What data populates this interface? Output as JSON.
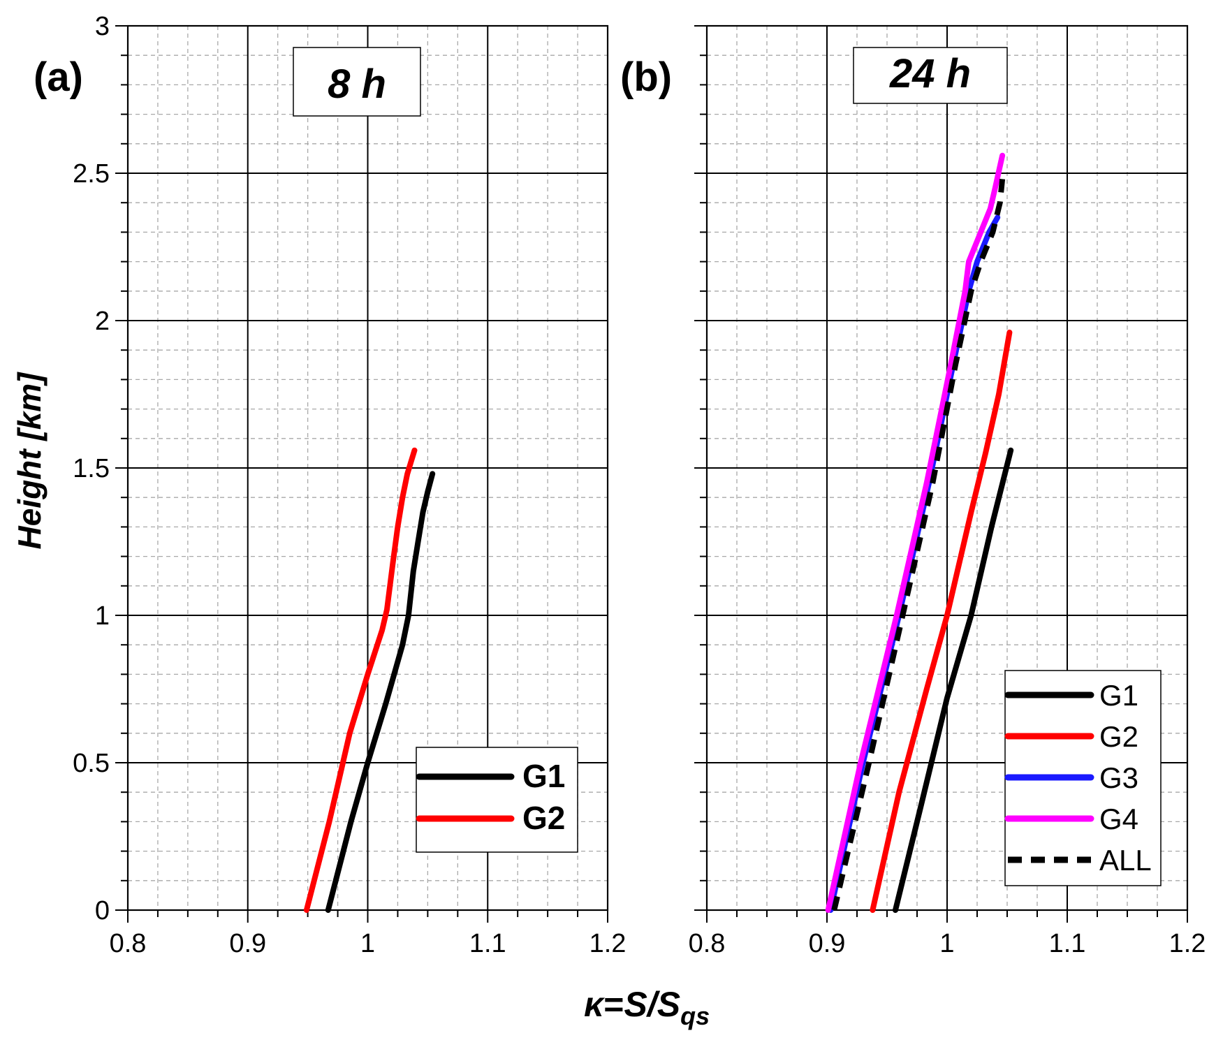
{
  "figure": {
    "ylabel": "Height [km]",
    "xlabel": {
      "kappa": "κ",
      "eq": "=",
      "s": "S/S",
      "sub": "qs"
    }
  },
  "colors": {
    "G1": "#000000",
    "G2": "#ff0000",
    "G3": "#1a1aff",
    "G4": "#ff00ff",
    "ALL": "#000000"
  },
  "chart_data": [
    {
      "type": "line",
      "panel_label": "(a)",
      "time_label": "8 h",
      "xlim": [
        0.8,
        1.2
      ],
      "ylim": [
        0,
        3
      ],
      "xticks": [
        "0.8",
        "0.9",
        "1",
        "1.1",
        "1.2"
      ],
      "yticks": [
        "0",
        "0.5",
        "1",
        "1.5",
        "2",
        "2.5",
        "3"
      ],
      "grid": true,
      "legend_position": "lower-right",
      "legend_style": "bold",
      "series": [
        {
          "name": "G1",
          "dashed": false,
          "x": [
            0.967,
            0.986,
            1.0,
            1.015,
            1.029,
            1.034,
            1.038,
            1.042,
            1.046,
            1.05,
            1.054
          ],
          "y": [
            0.0,
            0.3,
            0.5,
            0.7,
            0.9,
            1.0,
            1.15,
            1.25,
            1.35,
            1.42,
            1.48
          ]
        },
        {
          "name": "G2",
          "dashed": false,
          "x": [
            0.949,
            0.968,
            0.985,
            1.0,
            1.012,
            1.016,
            1.021,
            1.025,
            1.029,
            1.033,
            1.039
          ],
          "y": [
            0.0,
            0.3,
            0.6,
            0.8,
            0.95,
            1.02,
            1.18,
            1.3,
            1.4,
            1.48,
            1.56
          ]
        }
      ]
    },
    {
      "type": "line",
      "panel_label": "(b)",
      "time_label": "24 h",
      "xlim": [
        0.8,
        1.2
      ],
      "ylim": [
        0,
        3
      ],
      "xticks": [
        "0.8",
        "0.9",
        "1",
        "1.1",
        "1.2"
      ],
      "yticks": [
        "0",
        "0.5",
        "1",
        "1.5",
        "2",
        "2.5",
        "3"
      ],
      "grid": true,
      "legend_position": "lower-right",
      "legend_style": "normal",
      "series": [
        {
          "name": "G1",
          "dashed": false,
          "x": [
            0.957,
            0.978,
            1.0,
            1.02,
            1.037,
            1.053
          ],
          "y": [
            0.0,
            0.35,
            0.72,
            1.0,
            1.3,
            1.56
          ]
        },
        {
          "name": "G2",
          "dashed": false,
          "x": [
            0.938,
            0.96,
            0.983,
            1.0,
            1.02,
            1.032,
            1.043,
            1.052
          ],
          "y": [
            0.0,
            0.4,
            0.75,
            1.0,
            1.35,
            1.55,
            1.75,
            1.96
          ]
        },
        {
          "name": "G3",
          "dashed": false,
          "x": [
            0.903,
            0.93,
            0.96,
            0.985,
            1.005,
            1.018,
            1.025,
            1.035,
            1.042
          ],
          "y": [
            0.0,
            0.5,
            1.0,
            1.45,
            1.85,
            2.1,
            2.2,
            2.3,
            2.35
          ]
        },
        {
          "name": "G4",
          "dashed": false,
          "x": [
            0.901,
            0.928,
            0.958,
            0.983,
            1.003,
            1.015,
            1.018,
            1.028,
            1.036,
            1.04,
            1.046
          ],
          "y": [
            0.0,
            0.5,
            1.0,
            1.45,
            1.85,
            2.1,
            2.2,
            2.3,
            2.38,
            2.45,
            2.56
          ]
        },
        {
          "name": "ALL",
          "dashed": true,
          "x": [
            0.906,
            0.935,
            0.963,
            0.988,
            1.007,
            1.02,
            1.028,
            1.038,
            1.044,
            1.046
          ],
          "y": [
            0.0,
            0.5,
            1.0,
            1.45,
            1.85,
            2.1,
            2.2,
            2.3,
            2.4,
            2.48
          ]
        }
      ]
    }
  ]
}
